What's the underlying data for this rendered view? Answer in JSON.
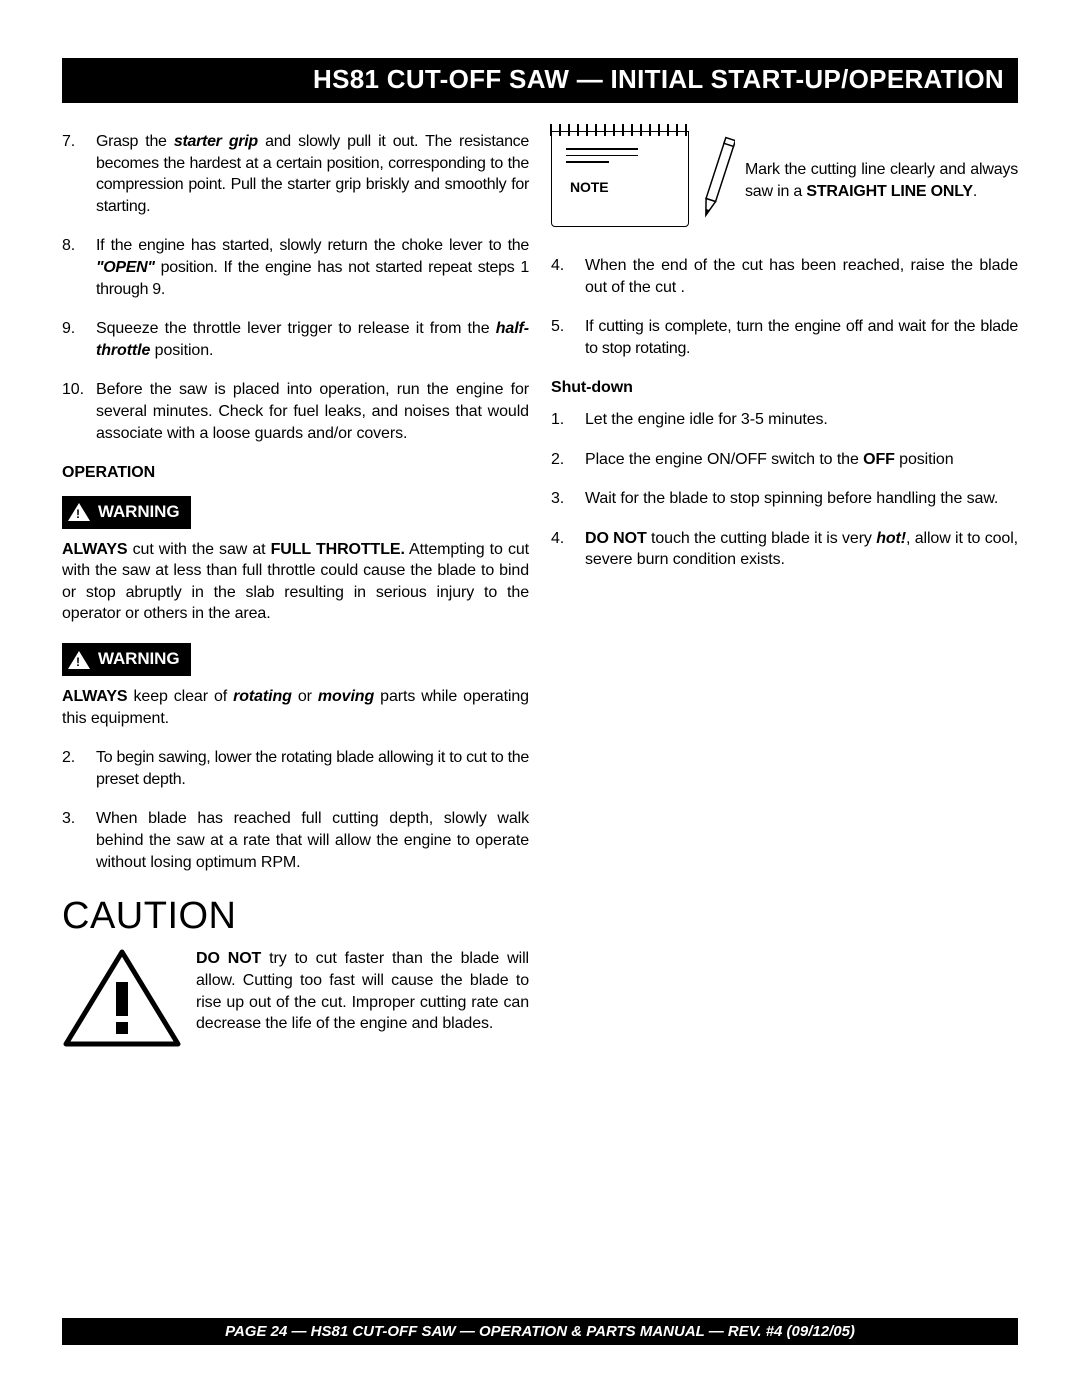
{
  "title_bar": "HS81 CUT-OFF SAW  — INITIAL START-UP/OPERATION",
  "footer": "PAGE 24 — HS81 CUT-OFF SAW  — OPERATION & PARTS MANUAL — REV. #4 (09/12/05)",
  "left": {
    "start_list": [
      {
        "n": "7.",
        "html": "Grasp the <b><i>starter grip</i></b> and slowly pull it out. The resistance becomes the hardest at a certain position, corresponding to the compression point. Pull the starter grip briskly and smoothly for starting."
      },
      {
        "n": "8.",
        "html": "If the engine has started, slowly return the choke lever  to the <b><i>\"OPEN\"</i></b> position.  If the engine has not started repeat steps 1 through 9."
      },
      {
        "n": "9.",
        "html": "Squeeze the throttle lever trigger to release it from the <b><i>half-throttle</i></b> position."
      },
      {
        "n": "10.",
        "html": "Before the saw is placed into operation, run the engine for several minutes.  Check for fuel leaks, and noises that would associate with a loose guards and/or covers."
      }
    ],
    "operation_h": "OPERATION",
    "warning_label": "WARNING",
    "warn1_html": "<b>ALWAYS</b>  cut with the saw at <b>FULL THROTTLE.</b>  Attempting to cut with the saw at less than full throttle could cause the blade to bind or stop abruptly in the slab resulting in serious injury to the operator or others in the area.",
    "warn2_html": "<b>ALWAYS</b>  keep clear of <b><i>rotating</i></b> or <b><i>moving</i></b> parts while operating this equipment.",
    "op_list": [
      {
        "n": "2.",
        "html": "To begin sawing, lower the rotating blade allowing it to cut to the preset depth."
      },
      {
        "n": "3.",
        "html": "When blade has reached full cutting depth, slowly walk behind the saw at a rate that will allow the engine to operate without losing optimum RPM."
      }
    ],
    "caution_h": "CAUTION",
    "caution_html": "<b>DO NOT</b> try to cut faster than the blade will allow.  Cutting too fast will cause the blade to rise up out of the cut. Improper cutting rate can decrease the life of the engine and blades."
  },
  "right": {
    "note_label": "NOTE",
    "note_html": "Mark the cutting line clearly and always saw in a  <b>STRAIGHT LINE ONLY</b>.",
    "cont_list": [
      {
        "n": "4.",
        "html": "When the end of the cut has been reached, raise the blade out of the cut ."
      },
      {
        "n": "5.",
        "html": "If cutting is complete, turn the engine off and wait for the blade to stop rotating."
      }
    ],
    "shutdown_h": "Shut-down",
    "shutdown_list": [
      {
        "n": "1.",
        "html": "Let the engine idle for 3-5 minutes."
      },
      {
        "n": "2.",
        "html": "Place the engine ON/OFF switch to the <b>OFF</b> position"
      },
      {
        "n": "3.",
        "html": "Wait for the blade to stop spinning before handling the saw."
      },
      {
        "n": "4.",
        "html": "<b>DO NOT</b> touch the cutting blade it is very <b><i>hot!</i></b>, allow it to cool, severe burn condition exists."
      }
    ]
  }
}
